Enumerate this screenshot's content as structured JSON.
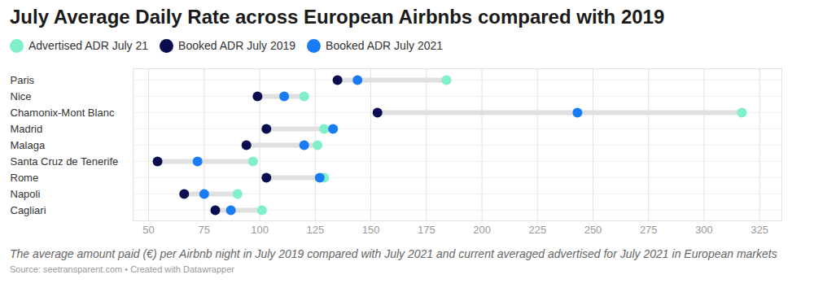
{
  "chart_data": {
    "type": "dot",
    "orientation": "horizontal",
    "title": "July Average Daily Rate across European Airbnbs compared with 2019",
    "caption": "The average amount paid (€) per Airbnb night in July 2019 compared with July 2021 and current averaged advertised for July 2021 in European markets",
    "source": "Source: seetransparent.com • Created with Datawrapper",
    "categories": [
      "Paris",
      "Nice",
      "Chamonix-Mont Blanc",
      "Madrid",
      "Malaga",
      "Santa Cruz de Tenerife",
      "Rome",
      "Napoli",
      "Cagliari"
    ],
    "series": [
      {
        "name": "Advertised ADR July 21",
        "color": "#80f0c8",
        "values": [
          184,
          120,
          317,
          129,
          126,
          97,
          129,
          90,
          101
        ]
      },
      {
        "name": "Booked ADR July 2019",
        "color": "#0b0c50",
        "values": [
          135,
          99,
          153,
          103,
          94,
          54,
          103,
          66,
          80
        ]
      },
      {
        "name": "Booked ADR July 2021",
        "color": "#1a7cf5",
        "values": [
          144,
          111,
          243,
          133,
          120,
          72,
          127,
          75,
          87
        ]
      }
    ],
    "xlim": [
      43,
      335
    ],
    "xticks": [
      50,
      75,
      100,
      125,
      150,
      175,
      200,
      225,
      250,
      275,
      300,
      325
    ],
    "grid": true,
    "legend": "top-left"
  }
}
